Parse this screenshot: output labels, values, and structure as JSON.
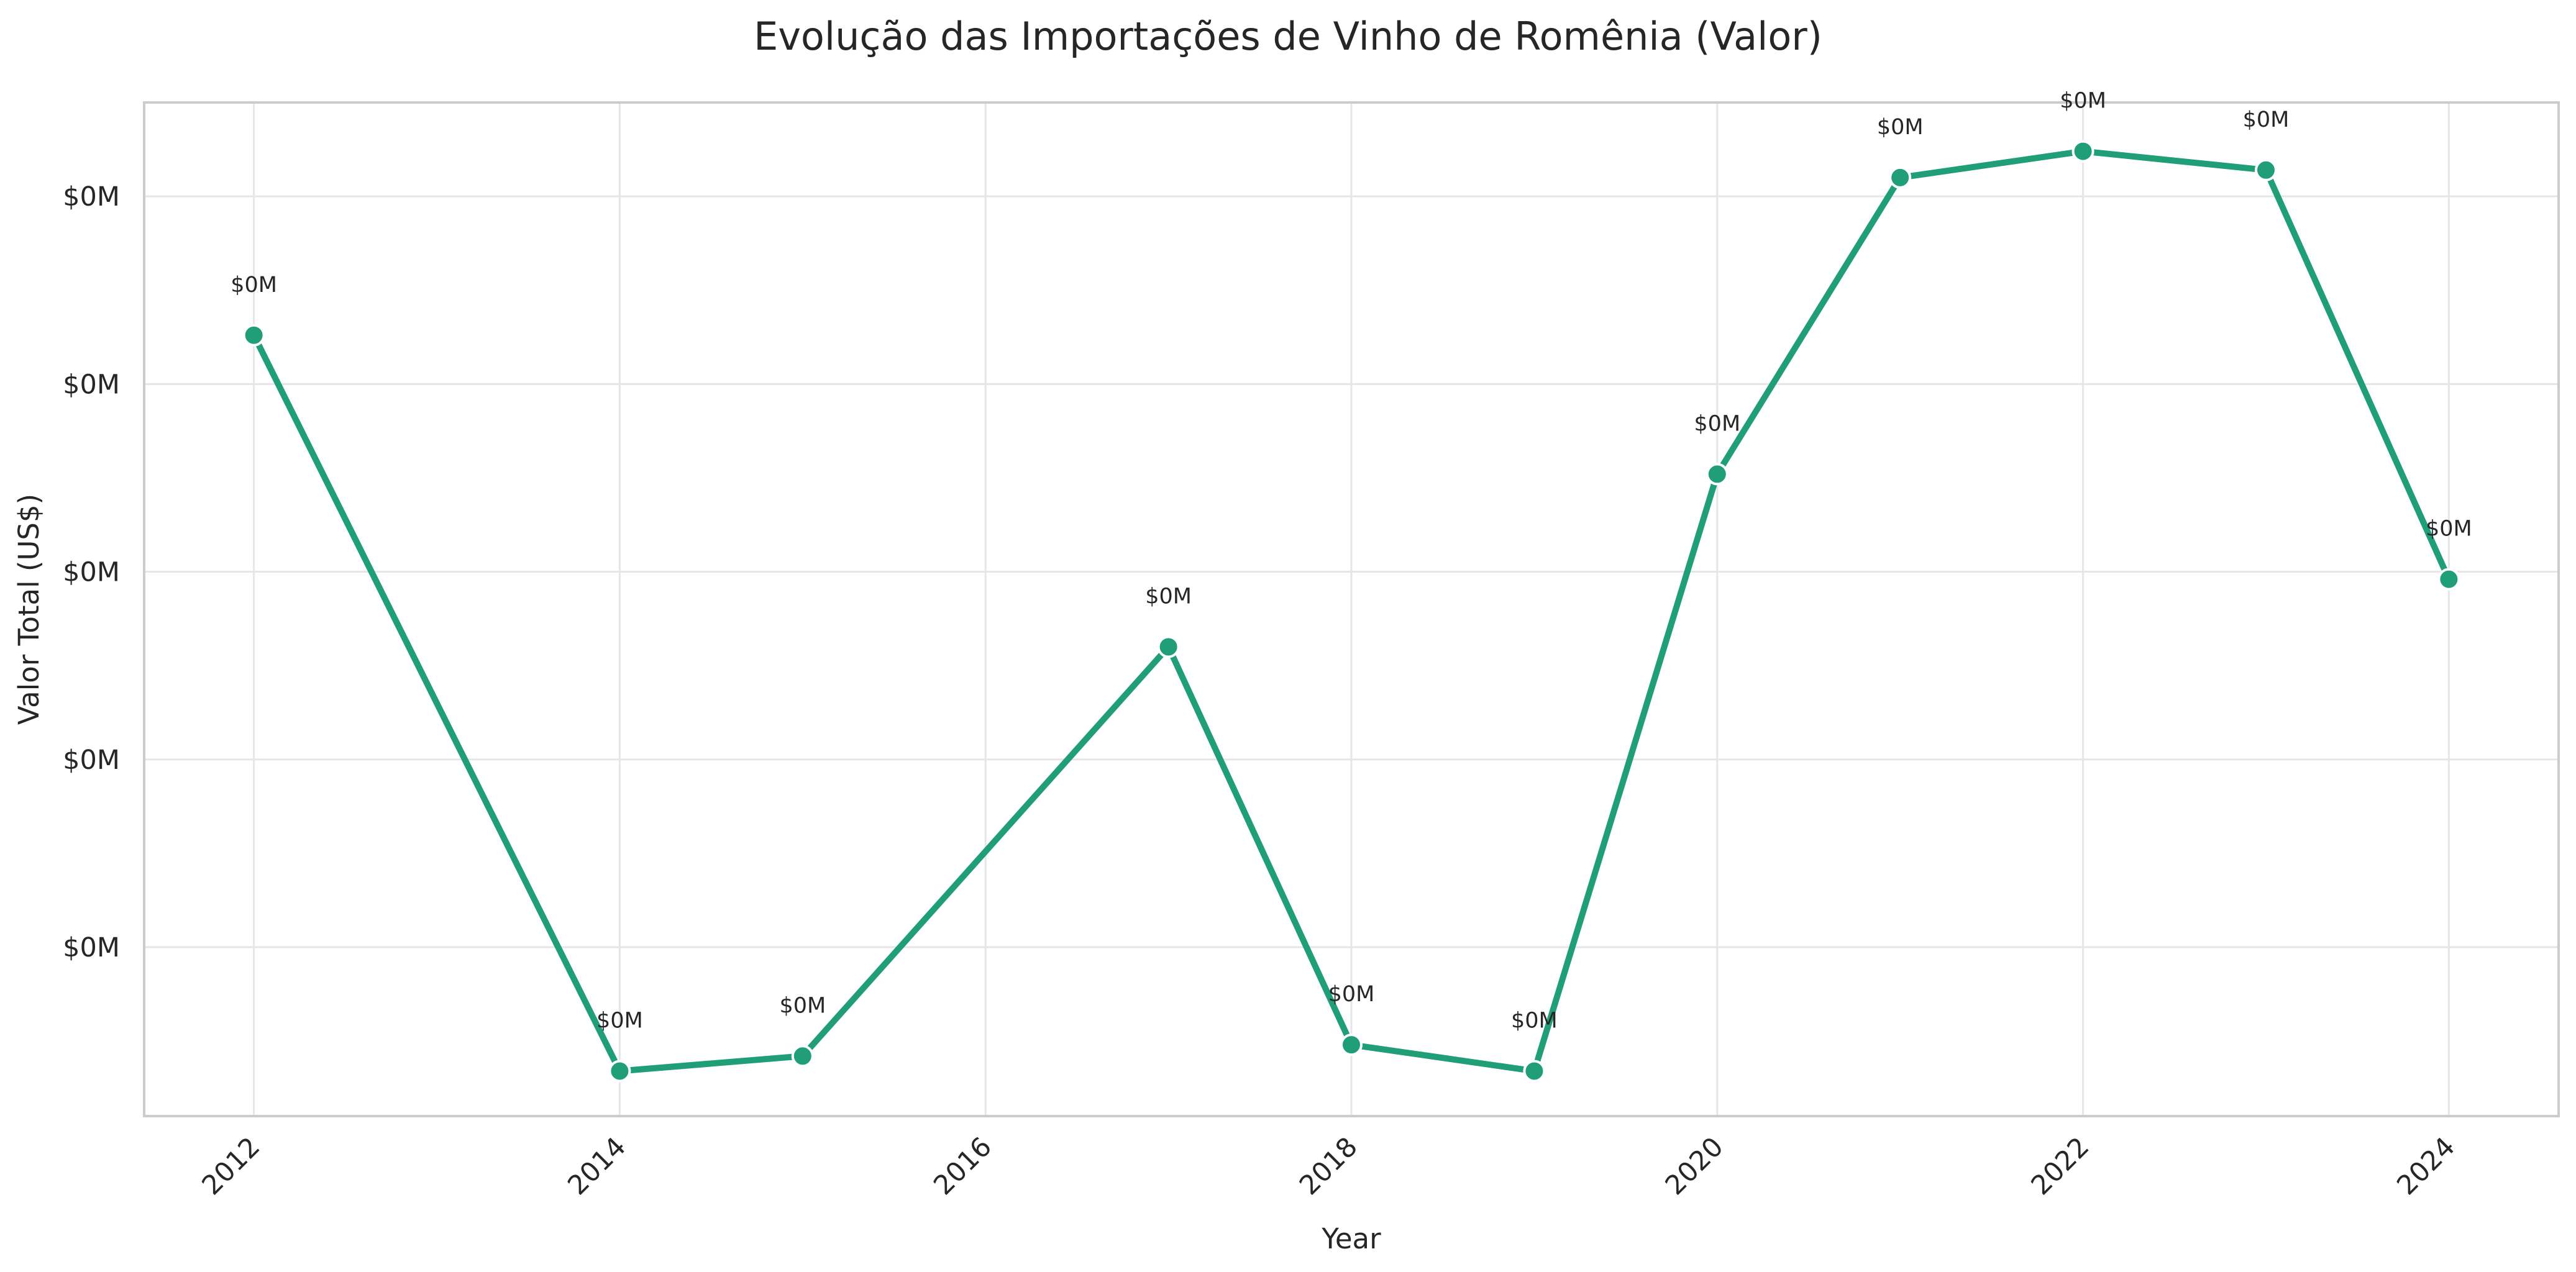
{
  "chart_data": {
    "type": "line",
    "title": "Evolução das Importações de Vinho de Romênia (Valor)",
    "xlabel": "Year",
    "ylabel": "Valor Total (US$)",
    "x_ticks": [
      "2012",
      "2014",
      "2016",
      "2018",
      "2020",
      "2022",
      "2024"
    ],
    "y_ticks": [
      "$0M",
      "$0M",
      "$0M",
      "$0M",
      "$0M"
    ],
    "y_tick_values": [
      1050,
      1100,
      1150,
      1200,
      1250
    ],
    "xlim": [
      2011.4,
      2024.6
    ],
    "ylim": [
      1005,
      1275
    ],
    "grid": true,
    "line_color": "#1f9e77",
    "series": [
      {
        "x": [
          2012,
          2014,
          2015,
          2017,
          2018,
          2019,
          2020,
          2021,
          2022,
          2023,
          2024
        ],
        "values": [
          1213,
          1017,
          1021,
          1130,
          1024,
          1017,
          1176,
          1255,
          1262,
          1257,
          1148
        ],
        "labels": [
          "$0M",
          "$0M",
          "$0M",
          "$0M",
          "$0M",
          "$0M",
          "$0M",
          "$0M",
          "$0M",
          "$0M",
          "$0M"
        ]
      }
    ]
  }
}
